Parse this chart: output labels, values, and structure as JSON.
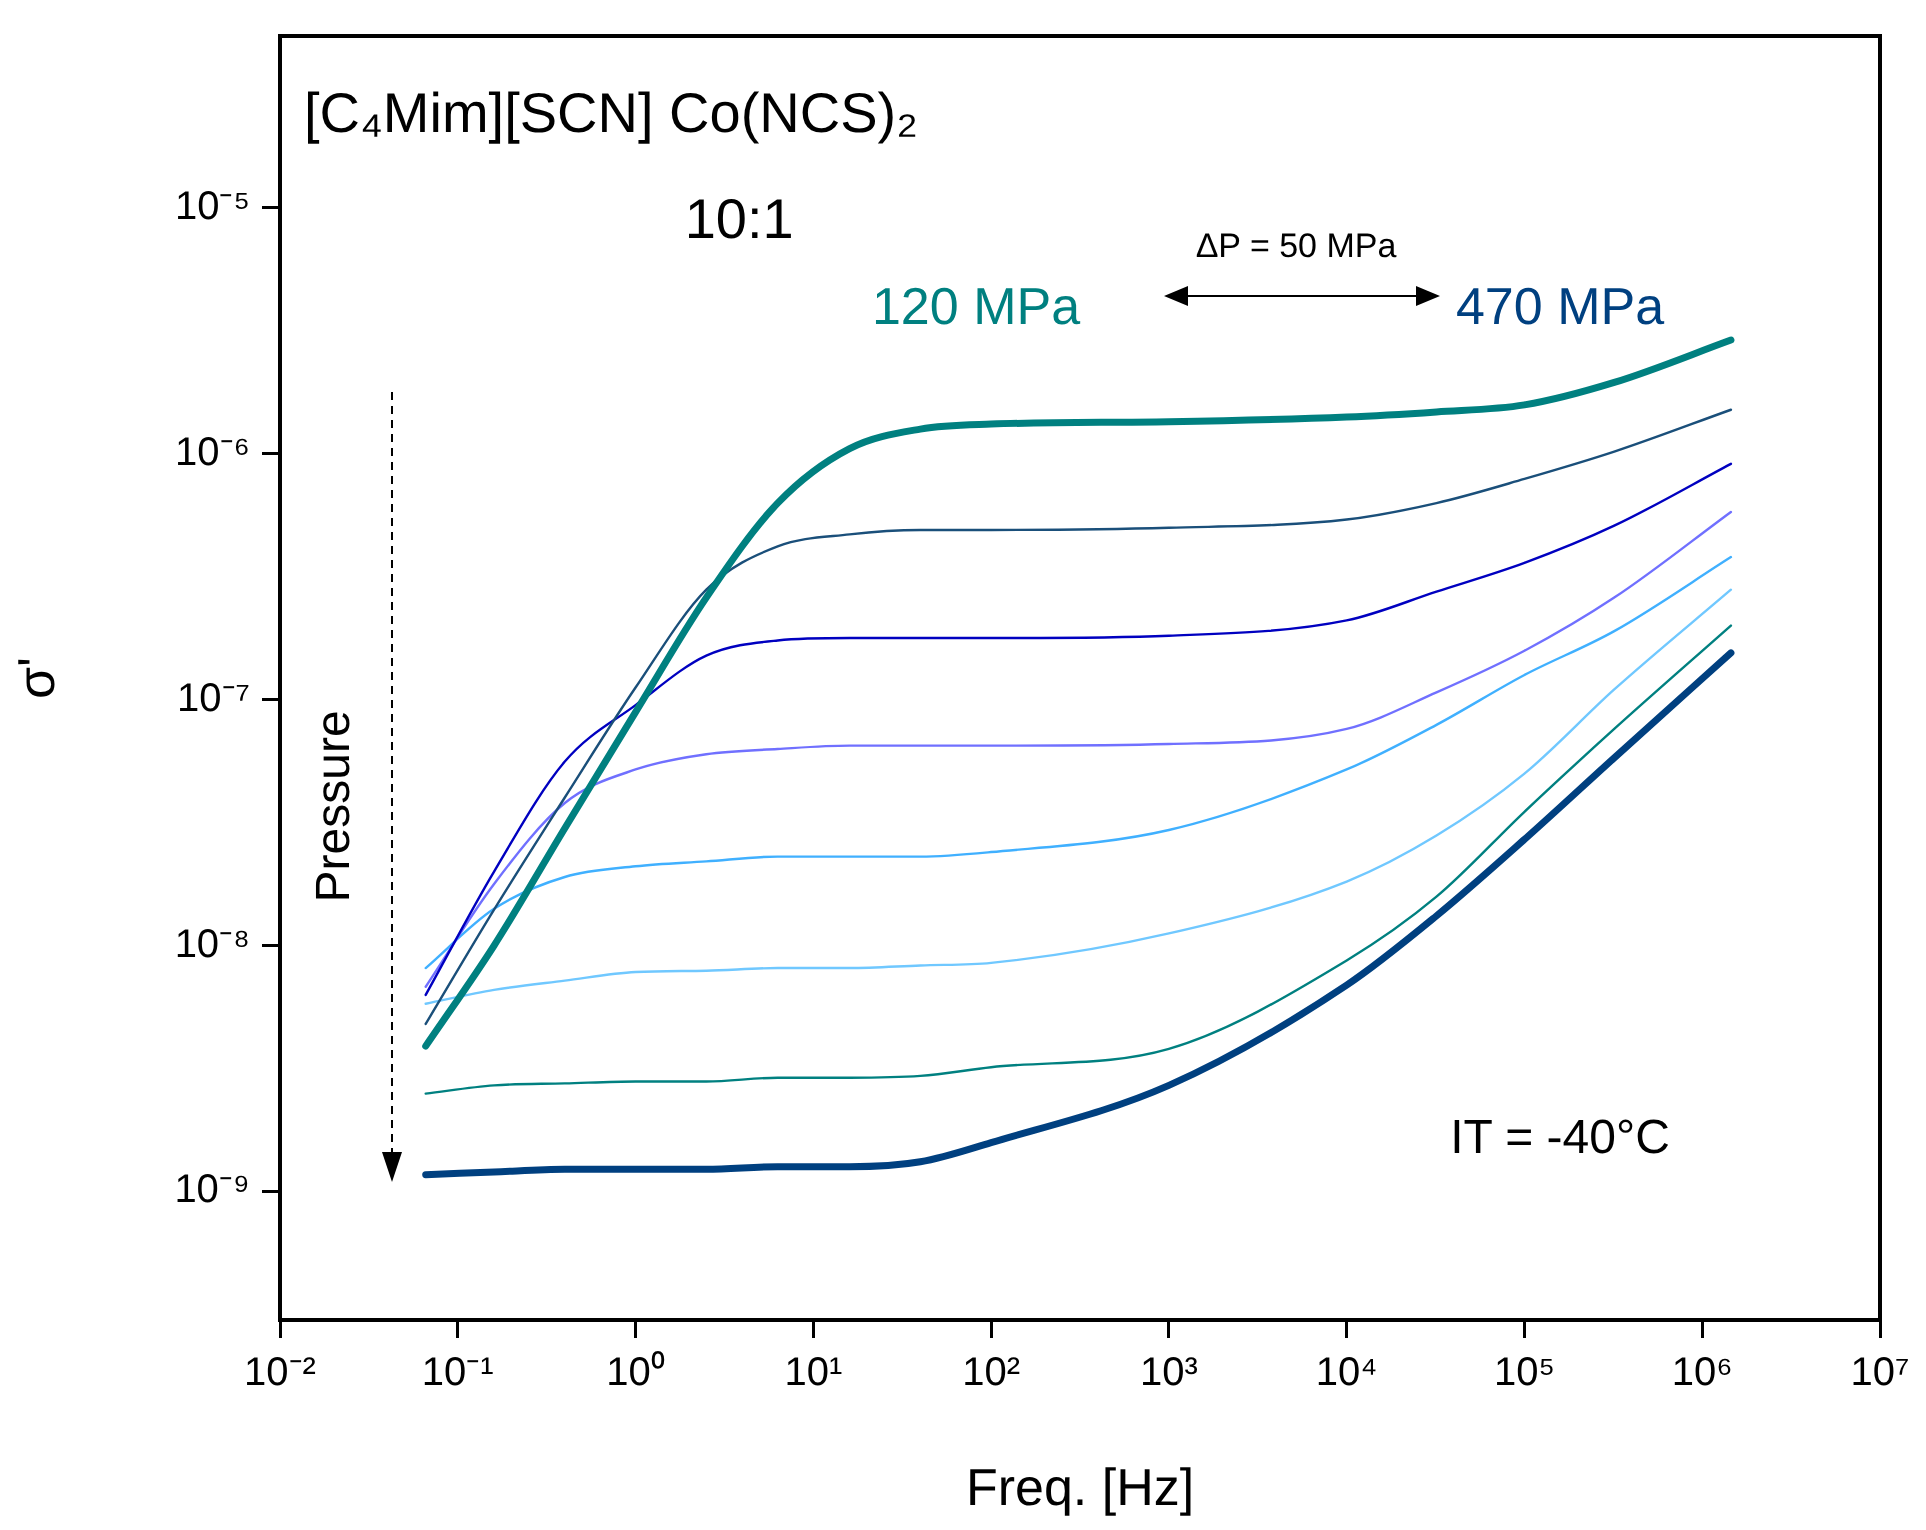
{
  "chart_data": {
    "type": "line",
    "title": "[C₄Mim][SCN] Co(NCS)₂",
    "xlabel": "Freq. [Hz]",
    "ylabel": "σ'",
    "annotations": [
      "10:1",
      "ΔP = 50 MPa",
      "Pressure",
      "IT = -40°C"
    ],
    "x": [
      0.066,
      0.16,
      0.4,
      1,
      2.5,
      6.3,
      16,
      40,
      100,
      1000,
      10000,
      32000,
      100000,
      320000,
      1450000
    ],
    "series": [
      {
        "name": "120 MPa",
        "color": "#008080",
        "values": [
          3.9e-09,
          1e-08,
          3e-08,
          8.9e-08,
          2.6e-07,
          6.3e-07,
          1.05e-06,
          1.26e-06,
          1.32e-06,
          1.35e-06,
          1.41e-06,
          1.48e-06,
          1.58e-06,
          1.95e-06,
          2.9e-06
        ]
      },
      {
        "color": "#1a4f7a",
        "values": [
          4.8e-09,
          1.4e-08,
          4e-08,
          1.12e-07,
          2.8e-07,
          4.2e-07,
          4.7e-07,
          4.9e-07,
          4.9e-07,
          5e-07,
          5.4e-07,
          6.3e-07,
          7.9e-07,
          1.02e-06,
          1.51e-06
        ]
      },
      {
        "color": "#0000c0",
        "values": [
          6.3e-09,
          2e-08,
          5.6e-08,
          9.5e-08,
          1.51e-07,
          1.74e-07,
          1.78e-07,
          1.78e-07,
          1.78e-07,
          1.82e-07,
          2.1e-07,
          2.75e-07,
          3.6e-07,
          5.1e-07,
          9.1e-07
        ]
      },
      {
        "color": "#7070ff",
        "values": [
          6.8e-09,
          1.78e-08,
          3.8e-08,
          5.2e-08,
          6e-08,
          6.3e-08,
          6.5e-08,
          6.5e-08,
          6.5e-08,
          6.6e-08,
          7.6e-08,
          1.07e-07,
          1.58e-07,
          2.6e-07,
          5.8e-07
        ]
      },
      {
        "color": "#40b0ff",
        "values": [
          8.1e-09,
          1.41e-08,
          1.9e-08,
          2.1e-08,
          2.2e-08,
          2.3e-08,
          2.3e-08,
          2.3e-08,
          2.4e-08,
          2.95e-08,
          5.2e-08,
          7.9e-08,
          1.26e-07,
          1.9e-07,
          3.8e-07
        ]
      },
      {
        "color": "#70c8ff",
        "values": [
          5.8e-09,
          6.6e-09,
          7.2e-09,
          7.8e-09,
          7.9e-09,
          8.1e-09,
          8.1e-09,
          8.3e-09,
          8.5e-09,
          1.12e-08,
          1.82e-08,
          2.8e-08,
          5e-08,
          1.1e-07,
          2.8e-07
        ]
      },
      {
        "color": "#008080",
        "values": [
          2.5e-09,
          2.7e-09,
          2.75e-09,
          2.8e-09,
          2.8e-09,
          2.9e-09,
          2.9e-09,
          2.95e-09,
          3.2e-09,
          3.8e-09,
          8.7e-09,
          1.58e-08,
          3.5e-08,
          7.6e-08,
          2e-07
        ]
      },
      {
        "name": "470 MPa",
        "color": "#004080",
        "values": [
          1.17e-09,
          1.2e-09,
          1.23e-09,
          1.23e-09,
          1.23e-09,
          1.26e-09,
          1.26e-09,
          1.32e-09,
          1.58e-09,
          2.7e-09,
          6.9e-09,
          1.32e-08,
          2.7e-08,
          5.8e-08,
          1.55e-07
        ]
      }
    ],
    "log": "xy",
    "xlim": [
      0.01,
      10000000
    ],
    "ylim": [
      3e-10,
      5e-05
    ],
    "xticks": [
      {
        "value": 0.01,
        "label": "10⁻²"
      },
      {
        "value": 0.1,
        "label": "10⁻¹"
      },
      {
        "value": 1,
        "label": "10⁰"
      },
      {
        "value": 10,
        "label": "10¹"
      },
      {
        "value": 100,
        "label": "10²"
      },
      {
        "value": 1000,
        "label": "10³"
      },
      {
        "value": 10000,
        "label": "10⁴"
      },
      {
        "value": 100000,
        "label": "10⁵"
      },
      {
        "value": 1000000,
        "label": "10⁶"
      },
      {
        "value": 10000000,
        "label": "10⁷"
      }
    ],
    "yticks": [
      {
        "value": 1e-09,
        "label": "10⁻⁹"
      },
      {
        "value": 1e-08,
        "label": "10⁻⁸"
      },
      {
        "value": 1e-07,
        "label": "10⁻⁷"
      },
      {
        "value": 1e-06,
        "label": "10⁻⁶"
      },
      {
        "value": 1e-05,
        "label": "10⁻⁵"
      }
    ],
    "grid": false,
    "legend": false,
    "marker": "none",
    "line_style": "solid"
  }
}
